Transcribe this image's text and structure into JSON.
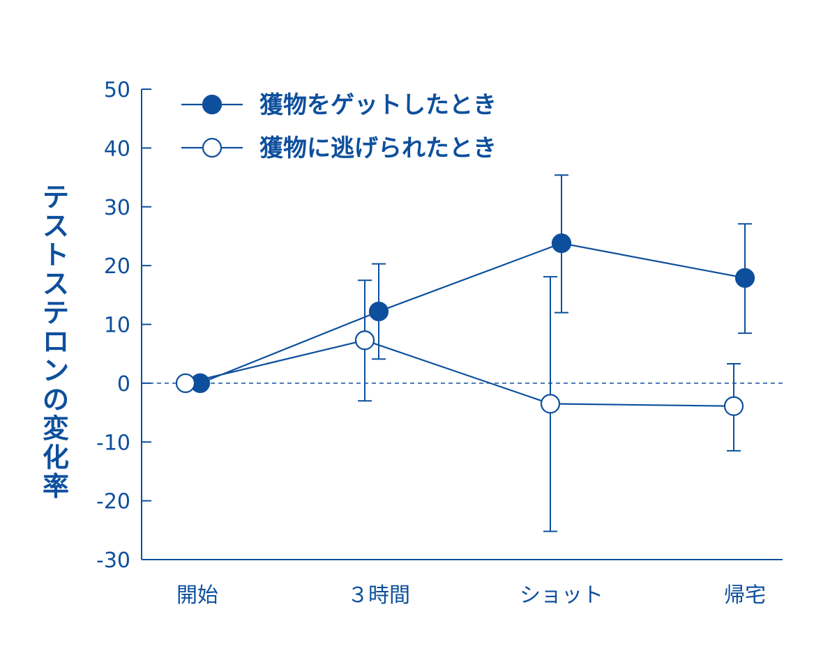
{
  "colors": {
    "primary": "#0d4f9c"
  },
  "chart_data": {
    "type": "line",
    "title": "",
    "xlabel": "",
    "ylabel": "テストステロンの変化率",
    "ylim": [
      -30,
      50
    ],
    "yticks": [
      "50",
      "40",
      "30",
      "20",
      "10",
      "0",
      "-10",
      "-20",
      "-30"
    ],
    "ytick_values": [
      50,
      40,
      30,
      20,
      10,
      0,
      -10,
      -20,
      -30
    ],
    "categories": [
      "開始",
      "３時間",
      "ショット",
      "帰宅"
    ],
    "reference_line": 0,
    "legend_position": "top-left",
    "series": [
      {
        "name": "獲物をゲットしたとき",
        "marker": "filled-circle",
        "values": [
          0,
          12.2,
          23.8,
          17.9
        ],
        "err_low": [
          0,
          4.1,
          12.0,
          8.5
        ],
        "err_high": [
          0,
          20.3,
          35.4,
          27.1
        ]
      },
      {
        "name": "獲物に逃げられたとき",
        "marker": "open-circle",
        "values": [
          0,
          7.3,
          -3.5,
          -3.9
        ],
        "err_low": [
          0,
          -3.0,
          -25.2,
          -11.5
        ],
        "err_high": [
          0,
          17.5,
          18.1,
          3.3
        ]
      }
    ]
  }
}
